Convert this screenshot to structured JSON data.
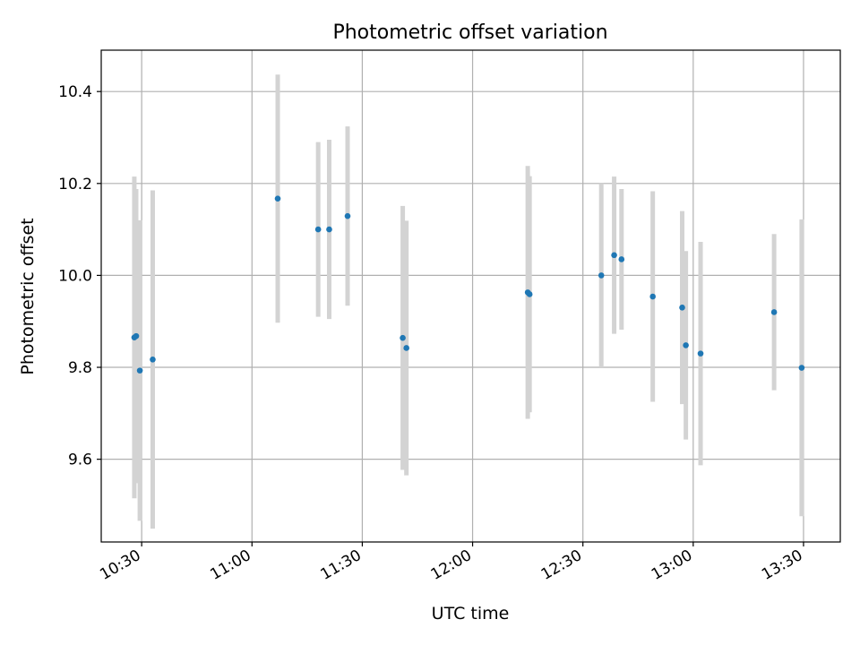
{
  "chart_data": {
    "type": "scatter",
    "title": "Photometric offset variation",
    "xlabel": "UTC time",
    "ylabel": "Photometric offset",
    "x_is_time": true,
    "xlim": [
      "10:19",
      "13:40"
    ],
    "ylim": [
      9.42,
      10.49
    ],
    "xticks": [
      {
        "value": "10:30",
        "label": "10:30"
      },
      {
        "value": "11:00",
        "label": "11:00"
      },
      {
        "value": "11:30",
        "label": "11:30"
      },
      {
        "value": "12:00",
        "label": "12:00"
      },
      {
        "value": "12:30",
        "label": "12:30"
      },
      {
        "value": "13:00",
        "label": "13:00"
      },
      {
        "value": "13:30",
        "label": "13:30"
      }
    ],
    "yticks": [
      {
        "value": 9.6,
        "label": "9.6"
      },
      {
        "value": 9.8,
        "label": "9.8"
      },
      {
        "value": 10.0,
        "label": "10.0"
      },
      {
        "value": 10.2,
        "label": "10.2"
      },
      {
        "value": 10.4,
        "label": "10.4"
      }
    ],
    "grid": true,
    "marker_color": "#1f77b4",
    "errorbar_color": "#d3d3d3",
    "points": [
      {
        "t": "10:28:00",
        "y": 9.865,
        "err": 0.35
      },
      {
        "t": "10:28:30",
        "y": 9.868,
        "err": 0.32
      },
      {
        "t": "10:29:30",
        "y": 9.793,
        "err": 0.327
      },
      {
        "t": "10:33:00",
        "y": 9.817,
        "err": 0.368
      },
      {
        "t": "11:07:00",
        "y": 10.167,
        "err": 0.27
      },
      {
        "t": "11:18:00",
        "y": 10.1,
        "err": 0.19
      },
      {
        "t": "11:21:00",
        "y": 10.1,
        "err": 0.195
      },
      {
        "t": "11:26:00",
        "y": 10.129,
        "err": 0.195
      },
      {
        "t": "11:41:00",
        "y": 9.864,
        "err": 0.287
      },
      {
        "t": "11:42:00",
        "y": 9.842,
        "err": 0.277
      },
      {
        "t": "12:15:00",
        "y": 9.963,
        "err": 0.275
      },
      {
        "t": "12:15:30",
        "y": 9.959,
        "err": 0.257
      },
      {
        "t": "12:35:00",
        "y": 10.0,
        "err": 0.2
      },
      {
        "t": "12:38:30",
        "y": 10.044,
        "err": 0.171
      },
      {
        "t": "12:40:30",
        "y": 10.035,
        "err": 0.153
      },
      {
        "t": "12:49:00",
        "y": 9.954,
        "err": 0.229
      },
      {
        "t": "12:57:00",
        "y": 9.93,
        "err": 0.21
      },
      {
        "t": "12:58:00",
        "y": 9.848,
        "err": 0.205
      },
      {
        "t": "13:02:00",
        "y": 9.83,
        "err": 0.243
      },
      {
        "t": "13:22:00",
        "y": 9.92,
        "err": 0.17
      },
      {
        "t": "13:29:30",
        "y": 9.799,
        "err": 0.323
      }
    ]
  }
}
